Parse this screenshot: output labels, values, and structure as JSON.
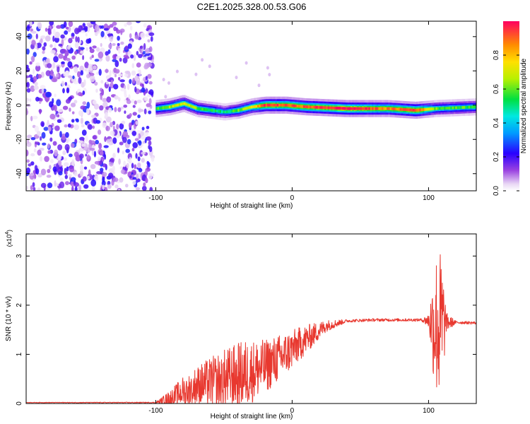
{
  "title": "C2E1.2025.328.00.53.G06",
  "chart_data": [
    {
      "type": "heatmap",
      "panel": "spectrogram",
      "xlabel": "Height of straight line (km)",
      "ylabel": "Frequency (Hz)",
      "xlim": [
        -195,
        135
      ],
      "ylim": [
        -50,
        49
      ],
      "x_ticks": [
        {
          "value": -100,
          "label": "-100"
        },
        {
          "value": 0,
          "label": "0"
        },
        {
          "value": 100,
          "label": "100"
        }
      ],
      "y_ticks": [
        {
          "value": 40,
          "label": "40"
        },
        {
          "value": 20,
          "label": "20"
        },
        {
          "value": 0,
          "label": "0"
        },
        {
          "value": -20,
          "label": "-20"
        },
        {
          "value": -40,
          "label": "-40"
        }
      ],
      "noise_region_x": [
        -195,
        -102
      ],
      "signal_track": [
        {
          "x": -100,
          "y": -2,
          "amp": 0.55
        },
        {
          "x": -90,
          "y": -1,
          "amp": 0.65
        },
        {
          "x": -80,
          "y": 1,
          "amp": 0.7
        },
        {
          "x": -70,
          "y": -2,
          "amp": 0.6
        },
        {
          "x": -60,
          "y": -3,
          "amp": 0.55
        },
        {
          "x": -50,
          "y": -4,
          "amp": 0.45
        },
        {
          "x": -40,
          "y": -3,
          "amp": 0.6
        },
        {
          "x": -30,
          "y": -1,
          "amp": 0.7
        },
        {
          "x": -20,
          "y": 0,
          "amp": 0.95
        },
        {
          "x": -5,
          "y": 0,
          "amp": 0.9
        },
        {
          "x": 10,
          "y": -1,
          "amp": 0.9
        },
        {
          "x": 40,
          "y": -2,
          "amp": 1.0
        },
        {
          "x": 70,
          "y": -2,
          "amp": 0.85
        },
        {
          "x": 90,
          "y": -3,
          "amp": 0.95
        },
        {
          "x": 105,
          "y": -2,
          "amp": 0.6
        },
        {
          "x": 135,
          "y": -1,
          "amp": 0.55
        }
      ],
      "colorbar": {
        "label": "Normalized spectral amplitude",
        "range": [
          0,
          1
        ],
        "ticks": [
          {
            "value": 0.0,
            "label": "0.0"
          },
          {
            "value": 0.2,
            "label": "0.2"
          },
          {
            "value": 0.4,
            "label": "0.4"
          },
          {
            "value": 0.6,
            "label": "0.6"
          },
          {
            "value": 0.8,
            "label": "0.8"
          }
        ]
      }
    },
    {
      "type": "line",
      "panel": "snr",
      "xlabel": "Height of straight line (km)",
      "ylabel": "SNR (10 * v/v)",
      "multiplier_label": "(x10",
      "multiplier_exp": "4",
      "multiplier_close": ")",
      "xlim": [
        -195,
        135
      ],
      "ylim": [
        0,
        3.45
      ],
      "x_ticks": [
        {
          "value": -100,
          "label": "-100"
        },
        {
          "value": 0,
          "label": "0"
        },
        {
          "value": 100,
          "label": "100"
        }
      ],
      "y_ticks": [
        {
          "value": 0,
          "label": "0"
        },
        {
          "value": 1,
          "label": "1"
        },
        {
          "value": 2,
          "label": "2"
        },
        {
          "value": 3,
          "label": "3"
        }
      ],
      "color": "#e8382f",
      "envelope": [
        {
          "x": -195,
          "base": 0.02,
          "spread": 0.005
        },
        {
          "x": -100,
          "base": 0.02,
          "spread": 0.01
        },
        {
          "x": -90,
          "base": 0.1,
          "spread": 0.15
        },
        {
          "x": -80,
          "base": 0.25,
          "spread": 0.3
        },
        {
          "x": -65,
          "base": 0.4,
          "spread": 0.45
        },
        {
          "x": -50,
          "base": 0.5,
          "spread": 0.6
        },
        {
          "x": -35,
          "base": 0.6,
          "spread": 0.7
        },
        {
          "x": -20,
          "base": 0.75,
          "spread": 0.55
        },
        {
          "x": -5,
          "base": 1.0,
          "spread": 0.45
        },
        {
          "x": 10,
          "base": 1.3,
          "spread": 0.3
        },
        {
          "x": 25,
          "base": 1.58,
          "spread": 0.12
        },
        {
          "x": 40,
          "base": 1.68,
          "spread": 0.03
        },
        {
          "x": 60,
          "base": 1.7,
          "spread": 0.03
        },
        {
          "x": 95,
          "base": 1.7,
          "spread": 0.03
        },
        {
          "x": 100,
          "base": 1.68,
          "spread": 0.15
        },
        {
          "x": 104,
          "base": 1.6,
          "spread": 1.2
        },
        {
          "x": 107,
          "base": 1.6,
          "spread": 1.7
        },
        {
          "x": 110,
          "base": 1.6,
          "spread": 1.4
        },
        {
          "x": 113,
          "base": 1.65,
          "spread": 0.2
        },
        {
          "x": 120,
          "base": 1.65,
          "spread": 0.03
        },
        {
          "x": 135,
          "base": 1.64,
          "spread": 0.03
        }
      ]
    }
  ]
}
